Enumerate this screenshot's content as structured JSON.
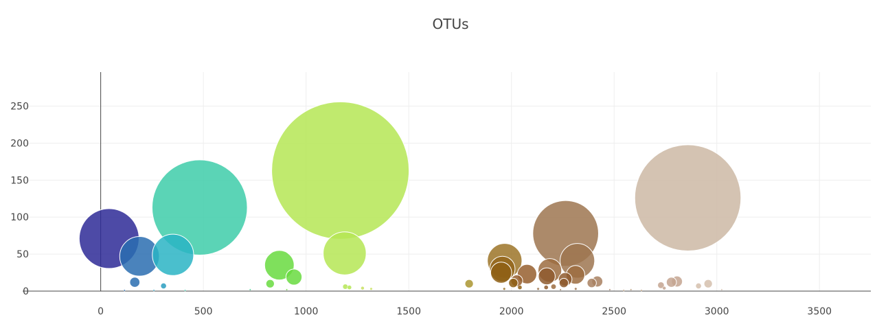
{
  "chart_data": {
    "type": "scatter",
    "title": "OTUs",
    "xlabel": "",
    "ylabel": "",
    "xlim": [
      -380,
      3750
    ],
    "ylim": [
      0,
      296
    ],
    "x_ticks": [
      0,
      500,
      1000,
      1500,
      2000,
      2500,
      3000,
      3500
    ],
    "y_ticks": [
      0,
      50,
      100,
      150,
      200,
      250
    ],
    "grid": true,
    "points": [
      {
        "x": 41,
        "y": 71,
        "size": 71,
        "color": "#2e2a96"
      },
      {
        "x": 482,
        "y": 113,
        "size": 113,
        "color": "#3ecca9"
      },
      {
        "x": 1167,
        "y": 163,
        "size": 163,
        "color": "#b5e655"
      },
      {
        "x": 2264,
        "y": 78,
        "size": 78,
        "color": "#9e7550"
      },
      {
        "x": 2859,
        "y": 126,
        "size": 126,
        "color": "#cdb9a5"
      },
      {
        "x": 189,
        "y": 47,
        "size": 47,
        "color": "#2a6db0"
      },
      {
        "x": 352,
        "y": 49,
        "size": 49,
        "color": "#2ab4c4"
      },
      {
        "x": 870,
        "y": 35,
        "size": 35,
        "color": "#69da40"
      },
      {
        "x": 1188,
        "y": 51,
        "size": 51,
        "color": "#b5e655"
      },
      {
        "x": 1967,
        "y": 41,
        "size": 41,
        "color": "#9c7428"
      },
      {
        "x": 2321,
        "y": 41,
        "size": 41,
        "color": "#9e7550"
      },
      {
        "x": 2187,
        "y": 28,
        "size": 28,
        "color": "#9c6c40"
      },
      {
        "x": 1956,
        "y": 30,
        "size": 30,
        "color": "#93661c"
      },
      {
        "x": 1950,
        "y": 25,
        "size": 25,
        "color": "#8e5f14"
      },
      {
        "x": 2076,
        "y": 23,
        "size": 23,
        "color": "#965f2e"
      },
      {
        "x": 2312,
        "y": 22,
        "size": 22,
        "color": "#9c6c40"
      },
      {
        "x": 2172,
        "y": 20,
        "size": 20,
        "color": "#8e5a2e"
      },
      {
        "x": 941,
        "y": 19,
        "size": 19,
        "color": "#69da40"
      },
      {
        "x": 2262,
        "y": 16,
        "size": 16,
        "color": "#8e5a2e"
      },
      {
        "x": 2026,
        "y": 14,
        "size": 14,
        "color": "#965f2e"
      },
      {
        "x": 2418,
        "y": 13,
        "size": 13,
        "color": "#a88060"
      },
      {
        "x": 2806,
        "y": 13,
        "size": 13,
        "color": "#c4a590"
      },
      {
        "x": 2779,
        "y": 12,
        "size": 12,
        "color": "#c4a590"
      },
      {
        "x": 166,
        "y": 12,
        "size": 12,
        "color": "#2a6db0"
      },
      {
        "x": 2255,
        "y": 11,
        "size": 11,
        "color": "#8e5a2e"
      },
      {
        "x": 2391,
        "y": 11,
        "size": 11,
        "color": "#a88060"
      },
      {
        "x": 2009,
        "y": 11,
        "size": 11,
        "color": "#8e5f14"
      },
      {
        "x": 1794,
        "y": 10,
        "size": 10,
        "color": "#aa9530"
      },
      {
        "x": 2958,
        "y": 10,
        "size": 10,
        "color": "#d5bfad"
      },
      {
        "x": 825,
        "y": 10,
        "size": 10,
        "color": "#69da40"
      },
      {
        "x": 2728,
        "y": 8,
        "size": 8,
        "color": "#c4a590"
      },
      {
        "x": 306,
        "y": 7,
        "size": 7,
        "color": "#2a9ec0"
      },
      {
        "x": 2911,
        "y": 7,
        "size": 7,
        "color": "#d5bfad"
      },
      {
        "x": 1191,
        "y": 6,
        "size": 6,
        "color": "#b5e655"
      },
      {
        "x": 2205,
        "y": 6,
        "size": 6,
        "color": "#9c6c40"
      },
      {
        "x": 1211,
        "y": 5,
        "size": 5,
        "color": "#b5e655"
      },
      {
        "x": 2169,
        "y": 5,
        "size": 5,
        "color": "#8e5a2e"
      },
      {
        "x": 2041,
        "y": 5,
        "size": 5,
        "color": "#8e5f14"
      },
      {
        "x": 1275,
        "y": 4,
        "size": 4,
        "color": "#c8e060"
      },
      {
        "x": 2744,
        "y": 4,
        "size": 4,
        "color": "#c4a590"
      },
      {
        "x": 1317,
        "y": 3,
        "size": 3,
        "color": "#c8e060"
      },
      {
        "x": 2313,
        "y": 3,
        "size": 3,
        "color": "#9e7550"
      },
      {
        "x": 1965,
        "y": 3,
        "size": 3,
        "color": "#9c7428"
      },
      {
        "x": 2130,
        "y": 3,
        "size": 3,
        "color": "#9e7550"
      },
      {
        "x": 2479,
        "y": 2,
        "size": 2,
        "color": "#a88060"
      },
      {
        "x": 2582,
        "y": 2,
        "size": 2,
        "color": "#b39370"
      },
      {
        "x": 906,
        "y": 2,
        "size": 2,
        "color": "#69da40"
      },
      {
        "x": 2239,
        "y": 2,
        "size": 2,
        "color": "#9e7550"
      },
      {
        "x": 3024,
        "y": 2,
        "size": 2,
        "color": "#d5bfad"
      },
      {
        "x": 728,
        "y": 2,
        "size": 2,
        "color": "#40d090"
      },
      {
        "x": 116,
        "y": 1,
        "size": 1,
        "color": "#2a6db0"
      },
      {
        "x": 259,
        "y": 1,
        "size": 1,
        "color": "#2a9ec0"
      },
      {
        "x": 411,
        "y": 1,
        "size": 1,
        "color": "#3ecca9"
      },
      {
        "x": 2547,
        "y": 1,
        "size": 1,
        "color": "#b39370"
      },
      {
        "x": 2633,
        "y": 1,
        "size": 1,
        "color": "#b39370"
      }
    ]
  }
}
